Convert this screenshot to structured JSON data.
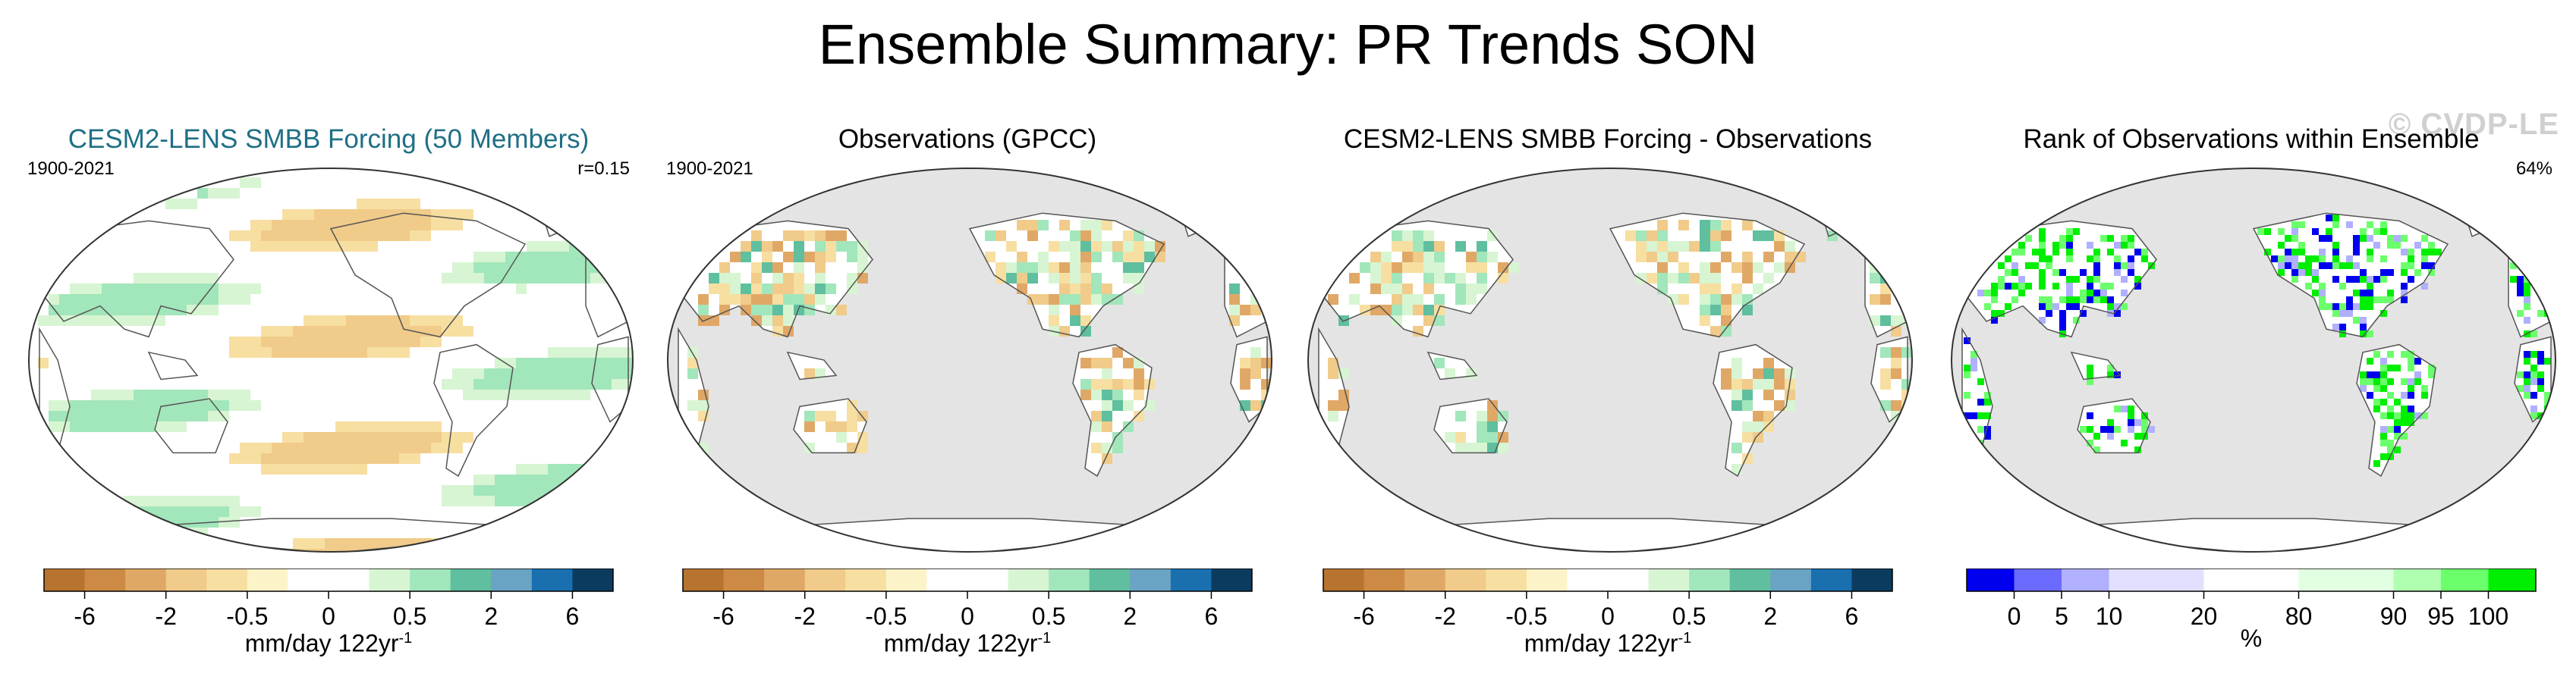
{
  "figure": {
    "title": "Ensemble Summary: PR Trends SON",
    "watermark": "© CVDP-LE"
  },
  "panels": [
    {
      "title": "CESM2-LENS SMBB Forcing (50 Members)",
      "title_color": "#1f6f85",
      "period": "1900-2021",
      "stat": "r=0.15",
      "background": "#ffffff",
      "colorbar": "trend"
    },
    {
      "title": "Observations (GPCC)",
      "title_color": "#000000",
      "period": "1900-2021",
      "stat": "",
      "background": "#e4e4e4",
      "colorbar": "trend"
    },
    {
      "title": "CESM2-LENS SMBB Forcing - Observations",
      "title_color": "#000000",
      "period": "",
      "stat": "",
      "background": "#e4e4e4",
      "colorbar": "trend"
    },
    {
      "title": "Rank of Observations within Ensemble",
      "title_color": "#000000",
      "period": "",
      "stat": "64%",
      "background": "#e4e4e4",
      "colorbar": "rank"
    }
  ],
  "colorbars": {
    "trend": {
      "colors": [
        "#b8732e",
        "#cc8a45",
        "#e0a866",
        "#f0cb8a",
        "#f7dfa2",
        "#fdf3c8",
        "#ffffff",
        "#ffffff",
        "#d7f5d2",
        "#a2e6bb",
        "#5fbf9f",
        "#6aa3c3",
        "#1a6faf",
        "#0b3c60"
      ],
      "tick_labels": [
        "-6",
        "-2",
        "-0.5",
        "0",
        "0.5",
        "2",
        "6"
      ],
      "tick_boundaries": [
        1,
        3,
        5,
        7,
        9,
        11,
        13
      ],
      "unit_base": "mm/day 122yr",
      "unit_sup": "-1"
    },
    "rank": {
      "colors": [
        "#0000ee",
        "#6b6bff",
        "#b0b0ff",
        "#e1e1ff",
        "#e1e1ff",
        "#ffffff",
        "#ffffff",
        "#e1ffe1",
        "#e1ffe1",
        "#b0ffb0",
        "#6bff6b",
        "#00ee00"
      ],
      "tick_labels": [
        "0",
        "5",
        "10",
        "20",
        "80",
        "90",
        "95",
        "100"
      ],
      "tick_boundaries": [
        1,
        2,
        3,
        5,
        7,
        9,
        10,
        11
      ],
      "unit_base": "%",
      "unit_sup": ""
    }
  },
  "map_features": {
    "land_color": "#ffffff",
    "outline_color": "#333333",
    "coast_color": "#555555"
  }
}
